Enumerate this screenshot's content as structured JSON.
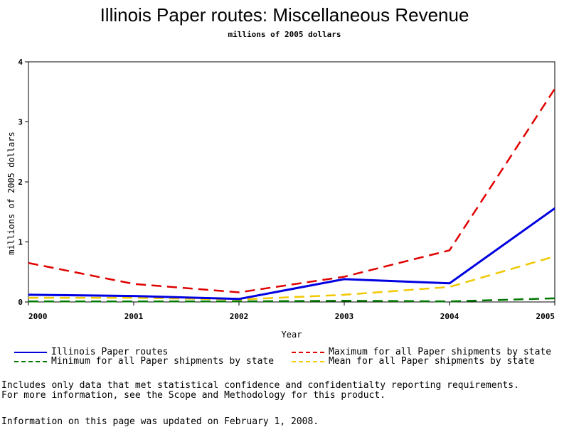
{
  "chart_data": {
    "type": "line",
    "title": "Illinois Paper routes: Miscellaneous Revenue",
    "subtitle": "millions of 2005 dollars",
    "xlabel": "Year",
    "ylabel": "millions of 2005 dollars",
    "x": [
      "2000",
      "2001",
      "2002",
      "2003",
      "2004",
      "2005"
    ],
    "ylim": [
      0,
      4
    ],
    "yticks": [
      "0",
      "1",
      "2",
      "3",
      "4"
    ],
    "grid": false,
    "series": [
      {
        "name": "Illinois Paper routes",
        "color": "#0000e0",
        "dash": "solid",
        "values": [
          0.12,
          0.1,
          0.05,
          0.38,
          0.31,
          1.56
        ]
      },
      {
        "name": "Maximum for all Paper shipments by state",
        "color": "#e00000",
        "dash": "dashed",
        "values": [
          0.65,
          0.3,
          0.16,
          0.42,
          0.86,
          3.55
        ]
      },
      {
        "name": "Minimum for all Paper shipments by state",
        "color": "#007700",
        "dash": "dashed",
        "values": [
          0.01,
          0.01,
          0.01,
          0.02,
          0.01,
          0.06
        ]
      },
      {
        "name": "Mean for all Paper shipments by state",
        "color": "#f0c800",
        "dash": "dashed",
        "values": [
          0.07,
          0.07,
          0.04,
          0.12,
          0.25,
          0.76
        ]
      }
    ]
  },
  "notes": {
    "line1": "Includes only data that met statistical confidence and confidentialty reporting requirements.",
    "line2": "For more information, see the Scope and Methodology for this product.",
    "updated": "Information on this page was updated on February 1, 2008."
  }
}
